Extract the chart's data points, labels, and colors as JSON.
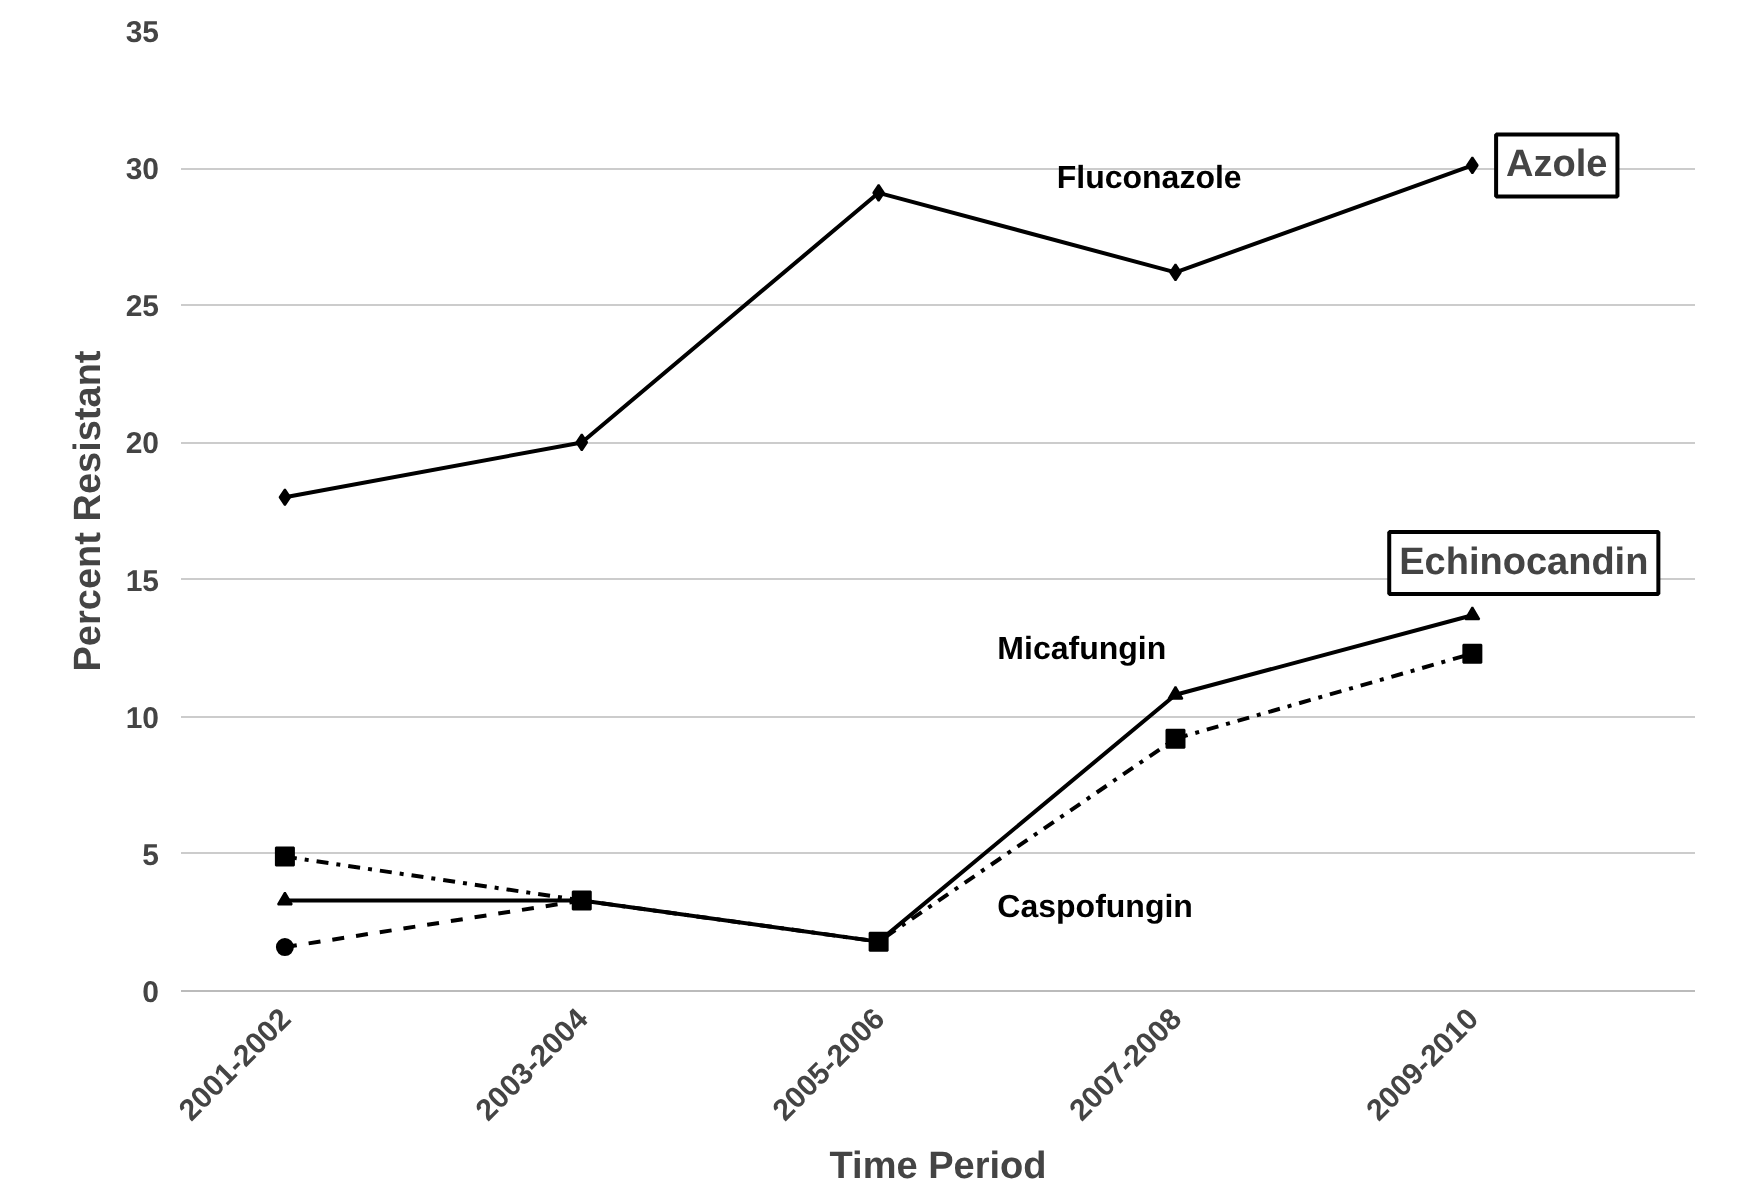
{
  "chart_data": {
    "type": "line",
    "xlabel": "Time Period",
    "ylabel": "Percent Resistant",
    "categories": [
      "2001-2002",
      "2003-2004",
      "2005-2006",
      "2007-2008",
      "2009-2010"
    ],
    "series": [
      {
        "color": "#000000",
        "values": [
          1.6,
          3.3,
          null,
          null,
          null
        ],
        "marker": "circle",
        "line_style": "dashed"
      },
      {
        "name": "Fluconazole",
        "color": "#000000",
        "values": [
          18,
          20,
          29.1,
          26.2,
          30.1
        ],
        "marker": "diamond",
        "line_style": "solid"
      },
      {
        "name": "Micafungin",
        "color": "#000000",
        "values": [
          3.3,
          3.3,
          1.8,
          10.8,
          13.7
        ],
        "marker": "triangle",
        "line_style": "solid"
      },
      {
        "name": "Caspofungin",
        "color": "#000000",
        "values": [
          4.9,
          3.3,
          1.8,
          9.2,
          12.3
        ],
        "marker": "square",
        "line_style": "dashdot"
      }
    ],
    "annotations": [
      "Azole",
      "Echinocandin"
    ],
    "ylim": [
      0,
      35
    ],
    "yticks": [
      0,
      5,
      10,
      15,
      20,
      25,
      30,
      35
    ],
    "grid": "y"
  }
}
